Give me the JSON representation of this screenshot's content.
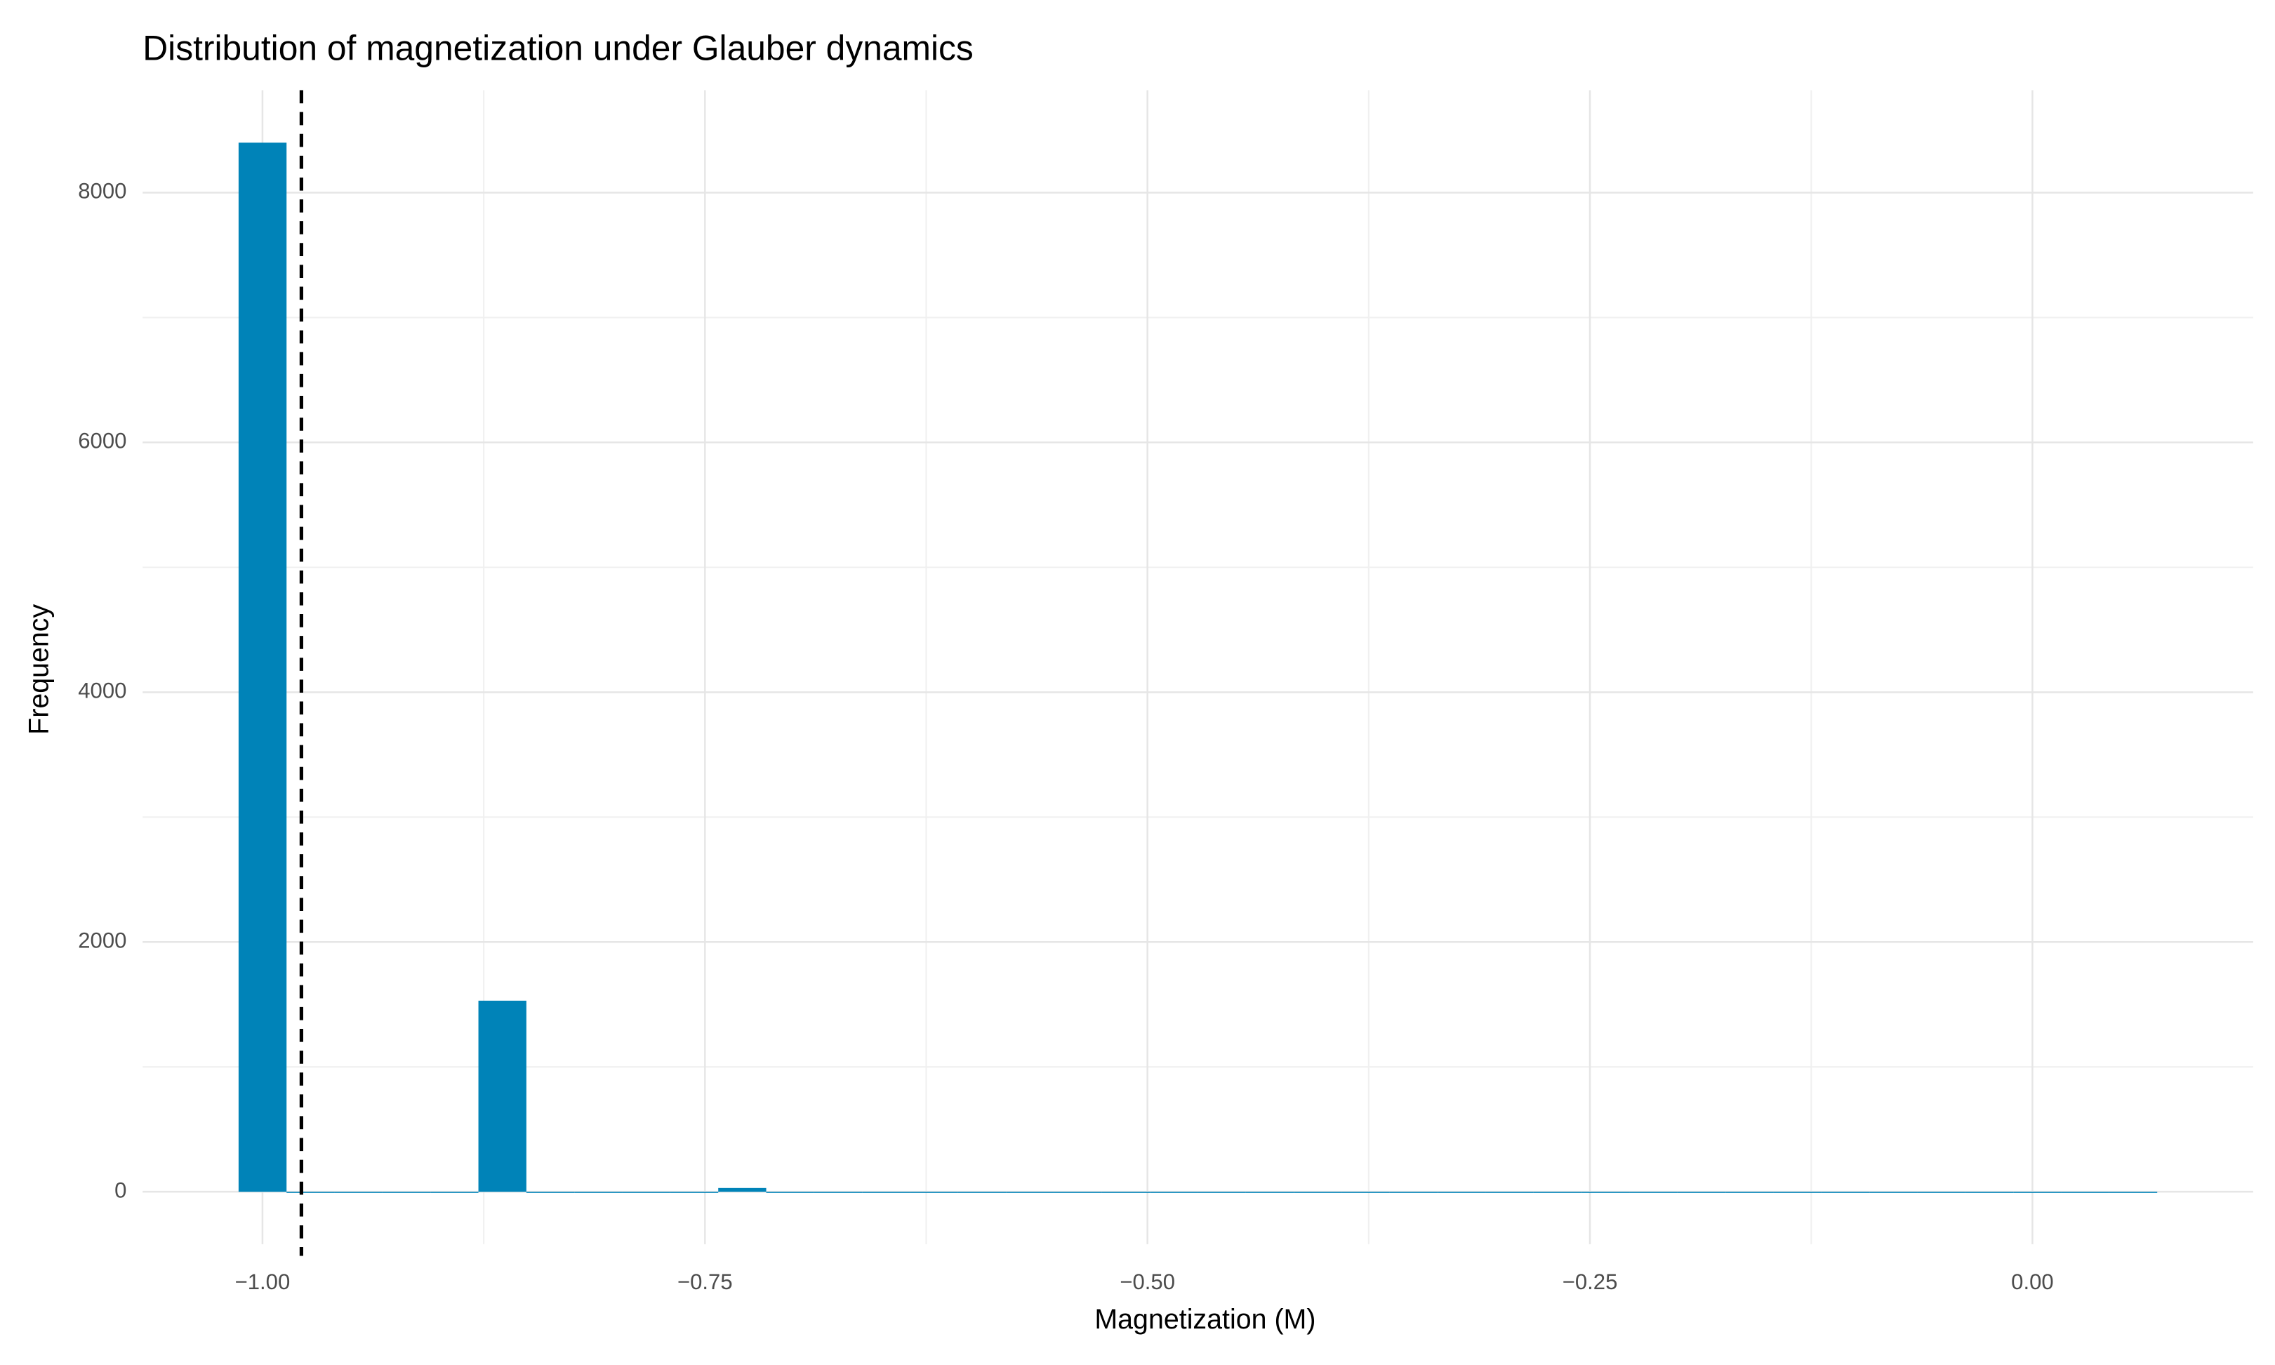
{
  "chart_data": {
    "type": "histogram",
    "title": "Distribution of magnetization under Glauber dynamics",
    "x_label": "Magnetization (M)",
    "y_label": "Frequency",
    "bins": [
      -1.0135,
      -0.9864,
      -0.9593,
      -0.9322,
      -0.9051,
      -0.878,
      -0.8509,
      -0.8238,
      -0.7967,
      -0.7696,
      -0.7425,
      -0.7154,
      -0.6883,
      -0.6612,
      -0.6341,
      -0.607,
      -0.5799,
      -0.5528,
      -0.5257,
      -0.4986,
      -0.4715,
      -0.4444,
      -0.4173,
      -0.3902,
      -0.3631,
      -0.336,
      -0.3089,
      -0.2818,
      -0.2547,
      -0.2276,
      -0.2005,
      -0.1734,
      -0.1463,
      -0.1192,
      -0.0921,
      -0.065,
      -0.0379,
      -0.0108,
      0.0163,
      0.0434,
      0.0705
    ],
    "values": [
      8400,
      0,
      0,
      0,
      0,
      1530,
      0,
      0,
      0,
      0,
      30,
      0,
      0,
      0,
      0,
      0,
      0,
      0,
      0,
      0,
      0,
      0,
      0,
      0,
      0,
      0,
      0,
      0,
      0,
      0,
      0,
      0,
      0,
      0,
      0,
      0,
      0,
      0,
      0,
      0
    ],
    "color": "#0083b8",
    "vline": -0.978,
    "xlim": [
      -1.0677,
      0.1247
    ],
    "xticks": [
      {
        "value": -1,
        "label": "−1.00"
      },
      {
        "value": -0.75,
        "label": "−0.75"
      },
      {
        "value": -0.5,
        "label": "−0.50"
      },
      {
        "value": -0.25,
        "label": "−0.25"
      },
      {
        "value": 0,
        "label": "0.00"
      }
    ],
    "ylim": [
      -420,
      8820
    ],
    "yticks": [
      0,
      2000,
      4000,
      6000,
      8000
    ],
    "grid": true
  }
}
